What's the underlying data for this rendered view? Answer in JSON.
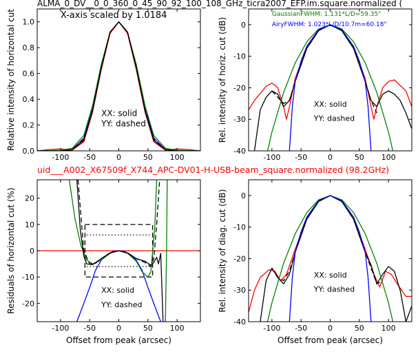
{
  "figure": {
    "top_title": "ALMA_0_DV__0_0_360_0_45_90_92_100_108_GHz_ticra2007_EFP.im.square.normalized (",
    "mid_title": "uid___A002_X67509f_X744_APC-DV01-H-USB-beam_square.normalized (98.2GHz)",
    "mid_title_color": "#ff0000"
  },
  "chart_data": [
    {
      "panel": "top-left",
      "type": "line",
      "ylabel": "Relative intensity of horizontal cut",
      "xlabel": "",
      "xlim": [
        -140,
        140
      ],
      "ylim": [
        0,
        1.1
      ],
      "xticks": [
        -100,
        -50,
        0,
        50,
        100
      ],
      "yticks": [
        0.0,
        0.2,
        0.4,
        0.6,
        0.8,
        1.0
      ],
      "ytick_labels": [
        "0.0",
        "0.2",
        "0.4",
        "0.6",
        "0.8",
        "1.0"
      ],
      "annotations": [
        "X-axis scaled by 1.0184",
        "XX: solid",
        "YY: dashed"
      ],
      "series": [
        {
          "color": "#ff0000",
          "dash": "solid",
          "x": [
            -140,
            -120,
            -100,
            -80,
            -60,
            -45,
            -30,
            -15,
            0,
            15,
            30,
            45,
            60,
            80,
            100,
            120,
            140
          ],
          "y": [
            0.0,
            0.01,
            0.015,
            0.005,
            0.07,
            0.3,
            0.63,
            0.91,
            1.0,
            0.91,
            0.63,
            0.3,
            0.07,
            0.005,
            0.015,
            0.01,
            0.0
          ]
        },
        {
          "color": "#0000ff",
          "dash": "solid",
          "x": [
            -140,
            -100,
            -80,
            -60,
            -45,
            -30,
            -15,
            0,
            15,
            30,
            45,
            60,
            80,
            100,
            140
          ],
          "y": [
            0.0,
            0.0,
            0.01,
            0.1,
            0.34,
            0.66,
            0.92,
            1.0,
            0.92,
            0.66,
            0.34,
            0.1,
            0.01,
            0.0,
            0.0
          ]
        },
        {
          "color": "#008000",
          "dash": "solid",
          "x": [
            -140,
            -100,
            -80,
            -60,
            -45,
            -30,
            -15,
            0,
            15,
            30,
            45,
            60,
            80,
            100,
            140
          ],
          "y": [
            0.0,
            0.005,
            0.02,
            0.12,
            0.35,
            0.67,
            0.92,
            1.0,
            0.92,
            0.67,
            0.35,
            0.12,
            0.02,
            0.005,
            0.0
          ]
        },
        {
          "color": "#000000",
          "dash": "solid",
          "x": [
            -140,
            -100,
            -80,
            -60,
            -45,
            -30,
            -15,
            0,
            15,
            30,
            45,
            60,
            80,
            100,
            140
          ],
          "y": [
            0.0,
            0.0,
            0.01,
            0.08,
            0.31,
            0.64,
            0.92,
            1.0,
            0.92,
            0.64,
            0.31,
            0.08,
            0.01,
            0.0,
            0.0
          ]
        },
        {
          "color": "#000000",
          "dash": "dashed",
          "x": [
            -140,
            -100,
            -80,
            -60,
            -45,
            -30,
            -15,
            0,
            15,
            30,
            45,
            60,
            80,
            100,
            140
          ],
          "y": [
            0.0,
            0.0,
            0.01,
            0.09,
            0.32,
            0.65,
            0.92,
            1.0,
            0.92,
            0.65,
            0.32,
            0.09,
            0.01,
            0.0,
            0.0
          ]
        }
      ]
    },
    {
      "panel": "top-right",
      "type": "line",
      "ylabel": "Rel. intensity of horiz. cut (dB)",
      "xlabel": "",
      "xlim": [
        -140,
        140
      ],
      "ylim": [
        -40,
        5
      ],
      "xticks": [
        -100,
        -50,
        0,
        50,
        100
      ],
      "yticks": [
        0,
        -10,
        -20,
        -30,
        -40
      ],
      "annotations": [
        "GaussianFWHM: 1.131*L/D=59.35\"",
        "AiryFWHM: 1.023*L/D/10.7m=60.18\"",
        "XX: solid",
        "YY: dashed"
      ],
      "annotation_colors": [
        "#008000",
        "#0000ff",
        "#000000",
        "#000000"
      ],
      "series": [
        {
          "color": "#ff0000",
          "dash": "solid",
          "x": [
            -140,
            -130,
            -110,
            -100,
            -90,
            -80,
            -75,
            -70,
            -60,
            -40,
            -20,
            0,
            20,
            40,
            60,
            70,
            75,
            80,
            90,
            100,
            110,
            130,
            140
          ],
          "y": [
            -27,
            -24,
            -19.5,
            -18.5,
            -20,
            -26,
            -30,
            -26,
            -17,
            -7,
            -1.8,
            0,
            -1.8,
            -7,
            -17,
            -26,
            -30,
            -26,
            -20,
            -18,
            -17.5,
            -21,
            -26
          ]
        },
        {
          "color": "#000000",
          "dash": "solid",
          "x": [
            -130,
            -120,
            -110,
            -100,
            -90,
            -80,
            -70,
            -60,
            -40,
            -20,
            0,
            20,
            40,
            60,
            70,
            80,
            90,
            100,
            110,
            120,
            130,
            140
          ],
          "y": [
            -40,
            -27,
            -23,
            -21,
            -22,
            -26,
            -24,
            -18,
            -7.5,
            -1.9,
            0,
            -1.9,
            -7.5,
            -18,
            -24,
            -26,
            -22,
            -21,
            -22,
            -24,
            -28,
            -33
          ]
        },
        {
          "color": "#000000",
          "dash": "dashed",
          "x": [
            -100,
            -90,
            -80,
            -70,
            -60,
            -40,
            -20,
            0,
            20,
            40,
            60,
            70,
            80
          ],
          "y": [
            -21,
            -23,
            -25,
            -24,
            -18,
            -7.5,
            -1.9,
            0,
            -1.9,
            -7.5,
            -18,
            -24,
            -28
          ]
        },
        {
          "color": "#008000",
          "dash": "solid",
          "x": [
            -110,
            -100,
            -80,
            -60,
            -40,
            -20,
            0,
            20,
            40,
            60,
            80,
            100,
            110
          ],
          "y": [
            -42,
            -34,
            -21.5,
            -12.1,
            -5.4,
            -1.35,
            0,
            -1.35,
            -5.4,
            -12.1,
            -21.5,
            -34,
            -42
          ]
        },
        {
          "color": "#0000ff",
          "dash": "solid",
          "x": [
            -70,
            -65,
            -60,
            -50,
            -40,
            -20,
            0,
            20,
            40,
            50,
            60,
            65,
            70
          ],
          "y": [
            -40,
            -26,
            -18,
            -11.5,
            -6.8,
            -1.6,
            0,
            -1.6,
            -6.8,
            -11.5,
            -18,
            -26,
            -40
          ]
        }
      ]
    },
    {
      "panel": "bottom-left",
      "type": "line",
      "ylabel": "Residuals of horizontal cut (%)",
      "xlabel": "Offset from peak (arcsec)",
      "xlim": [
        -140,
        140
      ],
      "ylim": [
        -27,
        27
      ],
      "xticks": [
        -100,
        -50,
        0,
        50,
        100
      ],
      "yticks": [
        20,
        10,
        0,
        -10,
        -20
      ],
      "annotations": [
        "XX: solid",
        "YY: dashed"
      ],
      "series": [
        {
          "color": "#ff0000",
          "dash": "solid",
          "x": [
            -140,
            140
          ],
          "y": [
            0,
            0
          ]
        },
        {
          "color": "#000000",
          "dash": "dashed",
          "x": [
            -58,
            58,
            58,
            -58,
            -58
          ],
          "y": [
            10,
            10,
            -10,
            -10,
            10
          ]
        },
        {
          "color": "#000000",
          "dash": "dotted",
          "x": [
            -55,
            55
          ],
          "y": [
            6,
            6
          ]
        },
        {
          "color": "#000000",
          "dash": "dotted",
          "x": [
            -55,
            55
          ],
          "y": [
            -6,
            -6
          ]
        },
        {
          "color": "#0000ff",
          "dash": "solid",
          "x": [
            -72,
            -65,
            -50,
            -40,
            -30,
            -20,
            -10,
            0,
            10,
            20,
            30,
            40,
            50,
            65,
            72
          ],
          "y": [
            -27,
            -23,
            -14,
            -7.5,
            -3.6,
            -1.5,
            -0.3,
            0,
            -0.3,
            -1.5,
            -3.6,
            -7.5,
            -14,
            -23,
            -27
          ]
        },
        {
          "color": "#008000",
          "dash": "solid",
          "x": [
            -85,
            -75,
            -65,
            -55,
            -45,
            -30,
            -15,
            0,
            15,
            30,
            40,
            50,
            55,
            62,
            65
          ],
          "y": [
            27,
            12,
            2,
            -3.5,
            -5,
            -3.5,
            -1,
            0,
            -1,
            -4,
            -8,
            -10,
            -8,
            10,
            27
          ]
        },
        {
          "color": "#008000",
          "dash": "solid",
          "x": [
            80,
            82,
            83
          ],
          "y": [
            -27,
            0,
            27
          ]
        },
        {
          "color": "#000000",
          "dash": "solid",
          "x": [
            -72,
            -66,
            -60,
            -55,
            -45,
            -30,
            -15,
            0,
            15,
            30,
            45,
            55,
            60,
            65,
            68,
            72,
            76
          ],
          "y": [
            27,
            8,
            -2,
            -5,
            -5.3,
            -3,
            -0.8,
            0,
            -0.8,
            -3,
            -4,
            -5.5,
            -4.5,
            -2.5,
            -5,
            -1,
            -27
          ]
        },
        {
          "color": "#000000",
          "dash": "dashed",
          "x": [
            -70,
            -60,
            -50,
            -40,
            -30,
            -15,
            0,
            15,
            30,
            45,
            55,
            60,
            65,
            70
          ],
          "y": [
            27,
            0,
            -5,
            -4.8,
            -3,
            -0.8,
            0,
            -0.8,
            -3,
            -4.5,
            -6,
            -3,
            10,
            27
          ]
        }
      ]
    },
    {
      "panel": "bottom-right",
      "type": "line",
      "ylabel": "Rel. intensity of diag. cut (dB)",
      "xlabel": "Offset from peak (arcsec)",
      "xlim": [
        -140,
        140
      ],
      "ylim": [
        -40,
        5
      ],
      "xticks": [
        -100,
        -50,
        0,
        50,
        100
      ],
      "yticks": [
        0,
        -10,
        -20,
        -30,
        -40
      ],
      "annotations": [
        "XX: solid",
        "YY: dashed"
      ],
      "series": [
        {
          "color": "#ff0000",
          "dash": "solid",
          "x": [
            -140,
            -130,
            -120,
            -105,
            -95,
            -85,
            -75,
            -60,
            -40,
            -20,
            0,
            20,
            40,
            60,
            75,
            85,
            95,
            105,
            115,
            130,
            140
          ],
          "y": [
            -37,
            -30,
            -26,
            -23.5,
            -24,
            -27,
            -25,
            -17,
            -7,
            -1.8,
            0,
            -1.8,
            -7,
            -17,
            -25,
            -29,
            -24,
            -25,
            -28,
            -32,
            -32
          ]
        },
        {
          "color": "#000000",
          "dash": "solid",
          "x": [
            -120,
            -110,
            -100,
            -90,
            -80,
            -70,
            -60,
            -40,
            -20,
            0,
            20,
            40,
            60,
            70,
            80,
            90,
            100,
            110,
            120,
            130,
            140
          ],
          "y": [
            -40,
            -27,
            -23,
            -26,
            -28,
            -25,
            -18,
            -7.5,
            -1.9,
            0,
            -1.9,
            -7.5,
            -18,
            -22,
            -28,
            -25,
            -22.5,
            -24,
            -30,
            -40,
            -35
          ]
        },
        {
          "color": "#000000",
          "dash": "dashed",
          "x": [
            -100,
            -90,
            -80,
            -70,
            -60,
            -40,
            -20,
            0,
            20,
            40,
            60,
            70,
            80,
            90
          ],
          "y": [
            -23,
            -26,
            -27,
            -24,
            -18,
            -7.5,
            -1.9,
            0,
            -1.9,
            -7.5,
            -18,
            -23,
            -28,
            -27
          ]
        },
        {
          "color": "#008000",
          "dash": "solid",
          "x": [
            -110,
            -100,
            -80,
            -60,
            -40,
            -20,
            0,
            20,
            40,
            60,
            80,
            100,
            110
          ],
          "y": [
            -42,
            -34,
            -21.5,
            -12.1,
            -5.4,
            -1.35,
            0,
            -1.35,
            -5.4,
            -12.1,
            -21.5,
            -34,
            -42
          ]
        },
        {
          "color": "#0000ff",
          "dash": "solid",
          "x": [
            -70,
            -65,
            -60,
            -50,
            -40,
            -20,
            0,
            20,
            40,
            50,
            60,
            65,
            70
          ],
          "y": [
            -40,
            -26,
            -18,
            -11.5,
            -6.8,
            -1.6,
            0,
            -1.6,
            -6.8,
            -11.5,
            -18,
            -26,
            -40
          ]
        }
      ]
    }
  ]
}
